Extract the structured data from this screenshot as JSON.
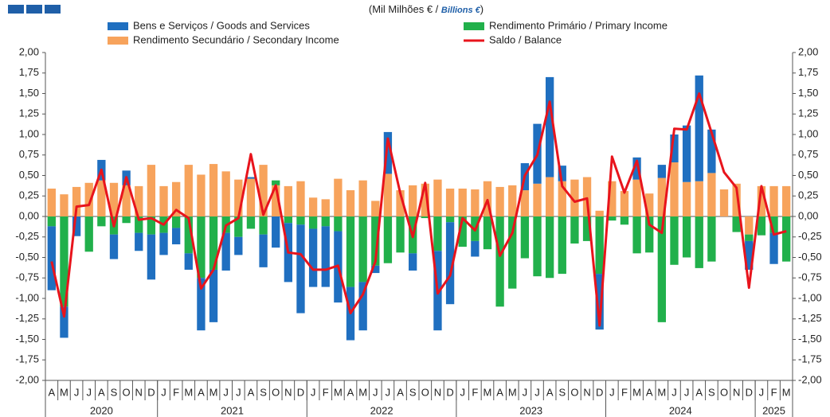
{
  "chart_data": {
    "type": "bar",
    "subtitle_parts": [
      "(Mil Milhões € / ",
      "Billions €",
      ")"
    ],
    "categories": [
      "A",
      "M",
      "J",
      "J",
      "A",
      "S",
      "O",
      "N",
      "D",
      "J",
      "F",
      "M",
      "A",
      "M",
      "J",
      "J",
      "A",
      "S",
      "O",
      "N",
      "D",
      "J",
      "F",
      "M",
      "A",
      "M",
      "J",
      "J",
      "A",
      "S",
      "O",
      "N",
      "D",
      "J",
      "F",
      "M",
      "A",
      "M",
      "J",
      "J",
      "A",
      "S",
      "O",
      "N",
      "D",
      "J",
      "F",
      "M",
      "A",
      "M",
      "J",
      "J",
      "A",
      "S",
      "O",
      "N",
      "D",
      "J",
      "F",
      "M"
    ],
    "years": [
      "2020",
      "2021",
      "2022",
      "2023",
      "2024",
      "2025"
    ],
    "series": [
      {
        "name": "Bens e Serviços / Goods and Services",
        "color": "#1f6fc0",
        "type": "bar",
        "values": [
          -0.78,
          -0.38,
          -0.24,
          0,
          0.25,
          -0.3,
          0.18,
          -0.22,
          -0.55,
          -0.27,
          -0.2,
          -0.2,
          -0.64,
          -0.64,
          -0.46,
          -0.22,
          0.02,
          -0.4,
          -0.38,
          -0.72,
          -1.08,
          -0.71,
          -0.74,
          -0.87,
          -0.65,
          -0.59,
          -0.09,
          0.51,
          0,
          -0.21,
          0,
          -0.97,
          -1.0,
          0,
          -0.19,
          0,
          0,
          0,
          0.33,
          0.73,
          1.22,
          0.19,
          0,
          0,
          -0.68,
          0,
          0,
          0.27,
          0,
          0.16,
          0.34,
          0.69,
          1.29,
          0.53,
          0,
          0,
          -0.35,
          0,
          -0.38,
          0
        ]
      },
      {
        "name": "Rendimento Primário / Primary Income",
        "color": "#21b04b",
        "type": "bar",
        "values": [
          -0.12,
          -1.1,
          0,
          -0.43,
          -0.12,
          -0.22,
          -0.08,
          -0.2,
          -0.22,
          -0.2,
          -0.14,
          -0.45,
          -0.75,
          -0.65,
          -0.2,
          -0.25,
          -0.15,
          -0.22,
          0.06,
          -0.08,
          -0.1,
          -0.15,
          -0.12,
          -0.18,
          -0.86,
          -0.8,
          -0.6,
          -0.57,
          -0.44,
          -0.45,
          -0.02,
          -0.42,
          -0.07,
          -0.37,
          -0.3,
          -0.4,
          -1.1,
          -0.88,
          -0.51,
          -0.73,
          -0.75,
          -0.7,
          -0.33,
          -0.3,
          -0.7,
          -0.05,
          -0.1,
          -0.45,
          -0.44,
          -1.29,
          -0.59,
          -0.5,
          -0.63,
          -0.55,
          0,
          -0.19,
          -0.08,
          -0.23,
          -0.2,
          -0.55
        ]
      },
      {
        "name": "Rendimento Secundário / Secondary Income",
        "color": "#f7a35c",
        "type": "bar",
        "values": [
          0.34,
          0.27,
          0.36,
          0.41,
          0.44,
          0.41,
          0.38,
          0.37,
          0.63,
          0.37,
          0.42,
          0.63,
          0.51,
          0.64,
          0.55,
          0.45,
          0.46,
          0.63,
          0.38,
          0.37,
          0.43,
          0.23,
          0.21,
          0.46,
          0.32,
          0.44,
          0.19,
          0.52,
          0.32,
          0.38,
          0.4,
          0.45,
          0.34,
          0.34,
          0.33,
          0.43,
          0.36,
          0.38,
          0.32,
          0.4,
          0.48,
          0.43,
          0.45,
          0.48,
          0.07,
          0.43,
          0.31,
          0.45,
          0.28,
          0.47,
          0.66,
          0.42,
          0.43,
          0.53,
          0.33,
          0.4,
          -0.22,
          0.37,
          0.37,
          0.37
        ]
      },
      {
        "name": "Saldo / Balance",
        "color": "#e8141c",
        "type": "line",
        "values": [
          -0.55,
          -1.22,
          0.12,
          0.14,
          0.57,
          -0.12,
          0.48,
          -0.04,
          -0.02,
          -0.1,
          0.08,
          -0.02,
          -0.88,
          -0.65,
          -0.11,
          -0.02,
          0.76,
          0.02,
          0.38,
          -0.44,
          -0.46,
          -0.65,
          -0.65,
          -0.6,
          -1.18,
          -0.95,
          -0.55,
          0.95,
          0.28,
          -0.25,
          0.41,
          -0.94,
          -0.72,
          -0.02,
          -0.17,
          0.2,
          -0.48,
          -0.2,
          0.5,
          0.75,
          1.4,
          0.37,
          0.18,
          0.22,
          -1.33,
          0.73,
          0.29,
          0.68,
          -0.1,
          -0.2,
          1.07,
          1.06,
          1.5,
          1.02,
          0.54,
          0.35,
          -0.87,
          0.37,
          -0.22,
          -0.18
        ]
      }
    ],
    "ylim": [
      -2,
      2
    ],
    "yticks": [
      {
        "value": -2,
        "label": "-2,00"
      },
      {
        "value": -1.75,
        "label": "-1,75"
      },
      {
        "value": -1.5,
        "label": "-1,50"
      },
      {
        "value": -1.25,
        "label": "-1,25"
      },
      {
        "value": -1,
        "label": "-1,00"
      },
      {
        "value": -0.75,
        "label": "-0,75"
      },
      {
        "value": -0.5,
        "label": "-0,50"
      },
      {
        "value": -0.25,
        "label": "-0,25"
      },
      {
        "value": 0,
        "label": "0,00"
      },
      {
        "value": 0.25,
        "label": "0,25"
      },
      {
        "value": 0.5,
        "label": "0,50"
      },
      {
        "value": 0.75,
        "label": "0,75"
      },
      {
        "value": 1,
        "label": "1,00"
      },
      {
        "value": 1.25,
        "label": "1,25"
      },
      {
        "value": 1.5,
        "label": "1,50"
      },
      {
        "value": 1.75,
        "label": "1,75"
      },
      {
        "value": 2,
        "label": "2,00"
      }
    ],
    "grid": false
  }
}
